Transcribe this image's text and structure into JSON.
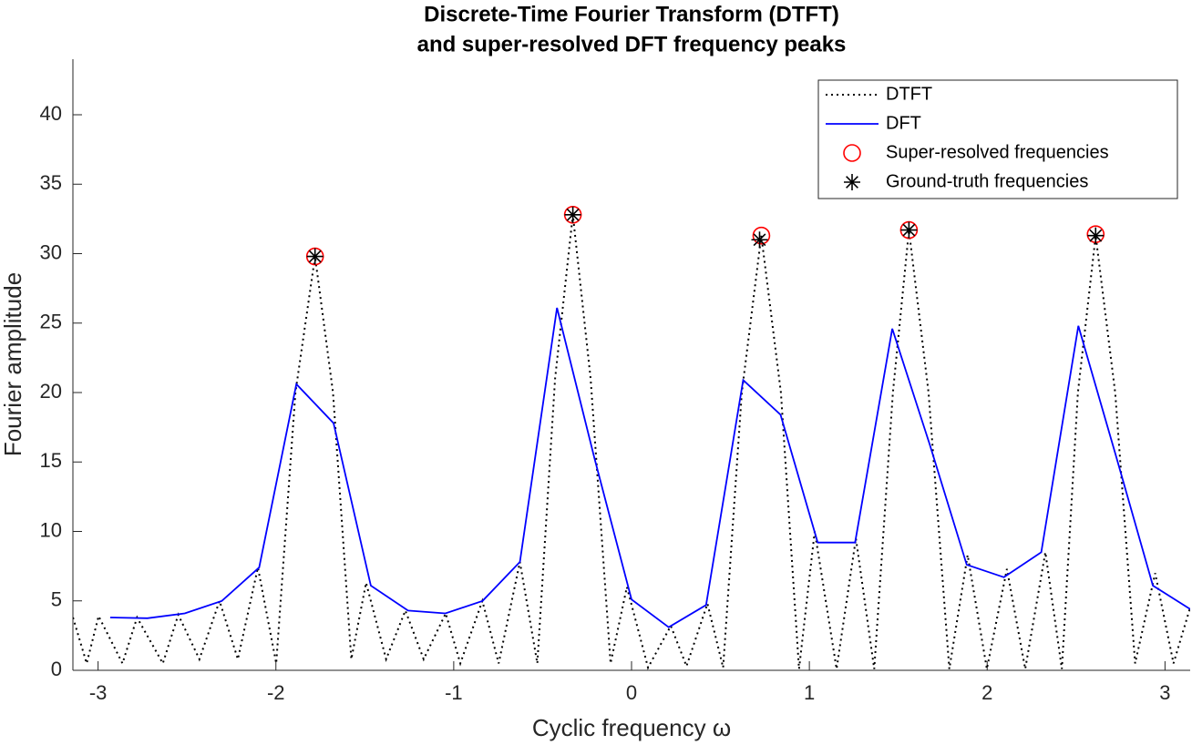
{
  "chart_data": {
    "type": "line",
    "title": [
      "Discrete-Time Fourier Transform (DTFT)",
      "and super-resolved DFT frequency peaks"
    ],
    "xlabel": "Cyclic frequency ω",
    "ylabel": "Fourier amplitude",
    "xlim": [
      -3.1416,
      3.1416
    ],
    "ylim": [
      0,
      44
    ],
    "xticks": [
      -3,
      -2,
      -1,
      0,
      1,
      2,
      3
    ],
    "yticks": [
      0,
      5,
      10,
      15,
      20,
      25,
      30,
      35,
      40
    ],
    "legend": "upper right",
    "series": [
      {
        "name": "DTFT",
        "color": "#000000",
        "style": "dotted",
        "x": [
          -3.141,
          -3.064,
          -2.997,
          -2.863,
          -2.781,
          -2.636,
          -2.549,
          -2.43,
          -2.317,
          -2.214,
          -2.101,
          -1.998,
          -1.89,
          -1.78,
          -1.679,
          -1.576,
          -1.493,
          -1.38,
          -1.272,
          -1.169,
          -1.045,
          -0.963,
          -0.839,
          -0.747,
          -0.628,
          -0.53,
          -0.43,
          -0.33,
          -0.23,
          -0.118,
          -0.026,
          0.093,
          0.221,
          0.309,
          0.427,
          0.515,
          0.62,
          0.73,
          0.84,
          0.942,
          1.03,
          1.153,
          1.262,
          1.365,
          1.47,
          1.56,
          1.67,
          1.787,
          1.89,
          1.998,
          2.111,
          2.214,
          2.327,
          2.42,
          2.51,
          2.61,
          2.72,
          2.832,
          2.945,
          3.048,
          3.141
        ],
        "values": [
          3.8,
          0.5,
          3.9,
          0.5,
          3.8,
          0.5,
          4.0,
          0.8,
          5.0,
          0.8,
          7.4,
          0.5,
          20.0,
          29.8,
          20.0,
          0.8,
          6.3,
          0.8,
          4.3,
          0.8,
          4.1,
          0.5,
          5.0,
          0.5,
          7.8,
          0.5,
          21.0,
          32.8,
          21.0,
          0.5,
          6.0,
          0.2,
          3.2,
          0.3,
          4.8,
          0.2,
          20.0,
          31.3,
          20.0,
          0.1,
          10.0,
          0.1,
          9.5,
          0.1,
          20.0,
          31.7,
          20.0,
          0.1,
          8.3,
          0.1,
          7.3,
          0.1,
          8.5,
          0.1,
          20.0,
          31.3,
          20.0,
          0.5,
          7.0,
          0.5,
          4.5
        ]
      },
      {
        "name": "DFT",
        "color": "#0000ff",
        "style": "solid",
        "x": [
          -2.932,
          -2.723,
          -2.513,
          -2.304,
          -2.094,
          -1.885,
          -1.676,
          -1.466,
          -1.257,
          -1.047,
          -0.838,
          -0.628,
          -0.419,
          -0.209,
          0,
          0.209,
          0.419,
          0.628,
          0.838,
          1.047,
          1.257,
          1.466,
          1.676,
          1.885,
          2.094,
          2.304,
          2.513,
          2.723,
          2.932,
          3.142
        ],
        "values": [
          3.8,
          3.75,
          4.1,
          5.0,
          7.4,
          20.6,
          17.8,
          6.1,
          4.3,
          4.1,
          5.0,
          7.8,
          26.1,
          15.3,
          5.1,
          3.1,
          4.7,
          20.9,
          18.4,
          9.2,
          9.2,
          24.6,
          16.3,
          7.6,
          6.7,
          8.5,
          24.8,
          15.5,
          6.1,
          4.4
        ]
      },
      {
        "name": "Super-resolved frequencies",
        "color": "#ff0000",
        "marker": "circle",
        "x": [
          -1.78,
          -0.33,
          0.73,
          1.56,
          2.61
        ],
        "values": [
          29.8,
          32.8,
          31.3,
          31.7,
          31.4
        ]
      },
      {
        "name": "Ground-truth frequencies",
        "color": "#000000",
        "marker": "asterisk",
        "x": [
          -1.78,
          -0.33,
          0.72,
          1.56,
          2.61
        ],
        "values": [
          29.8,
          32.8,
          31.0,
          31.7,
          31.3
        ]
      }
    ]
  }
}
